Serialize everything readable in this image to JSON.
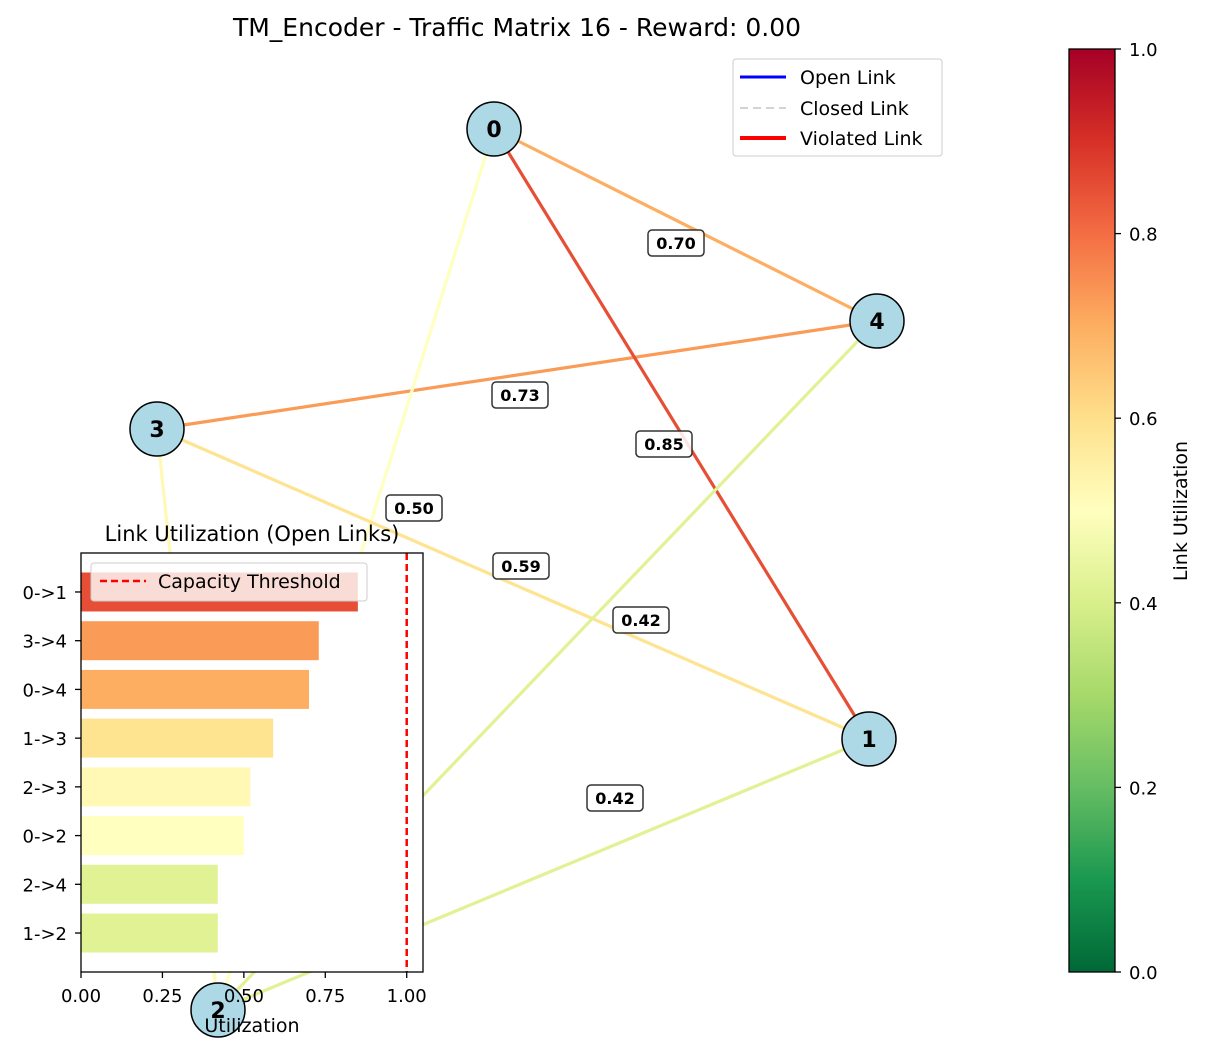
{
  "title": "TM_Encoder - Traffic Matrix 16 - Reward: 0.00",
  "legend": {
    "placement": "top-right",
    "items": [
      {
        "label": "Open Link",
        "color": "#0000ff",
        "style": "solid"
      },
      {
        "label": "Closed Link",
        "color": "#d3d3d3",
        "style": "dashed"
      },
      {
        "label": "Violated Link",
        "color": "#ff0000",
        "style": "solid-thick"
      }
    ]
  },
  "chart_data": [
    {
      "type": "network",
      "nodes": [
        "0",
        "1",
        "2",
        "3",
        "4"
      ],
      "edges": [
        {
          "source": "0",
          "target": "4",
          "utilization": 0.7,
          "label": "0.70"
        },
        {
          "source": "3",
          "target": "4",
          "utilization": 0.73,
          "label": "0.73"
        },
        {
          "source": "0",
          "target": "1",
          "utilization": 0.85,
          "label": "0.85"
        },
        {
          "source": "0",
          "target": "2",
          "utilization": 0.5,
          "label": "0.50"
        },
        {
          "source": "1",
          "target": "3",
          "utilization": 0.59,
          "label": "0.59"
        },
        {
          "source": "2",
          "target": "4",
          "utilization": 0.42,
          "label": "0.42"
        },
        {
          "source": "1",
          "target": "2",
          "utilization": 0.42,
          "label": "0.42"
        },
        {
          "source": "2",
          "target": "3",
          "utilization": 0.52,
          "label": ""
        }
      ],
      "node_color": "#add8e6"
    },
    {
      "type": "bar",
      "orientation": "horizontal",
      "title": "Link Utilization (Open Links)",
      "xlabel": "Utilization",
      "categories": [
        "0->1",
        "3->4",
        "0->4",
        "1->3",
        "2->3",
        "0->2",
        "2->4",
        "1->2"
      ],
      "values": [
        0.85,
        0.73,
        0.7,
        0.59,
        0.52,
        0.5,
        0.42,
        0.42
      ],
      "xlim": [
        0,
        1.05
      ],
      "xticks": [
        "0.00",
        "0.25",
        "0.50",
        "0.75",
        "1.00"
      ],
      "threshold": {
        "value": 1.0,
        "label": "Capacity Threshold",
        "color": "#ff0000"
      }
    },
    {
      "type": "colorbar",
      "label": "Link Utilization",
      "colormap": "RdYlGn_r",
      "range": [
        0,
        1
      ],
      "ticks": [
        "0.0",
        "0.2",
        "0.4",
        "0.6",
        "0.8",
        "1.0"
      ]
    }
  ]
}
